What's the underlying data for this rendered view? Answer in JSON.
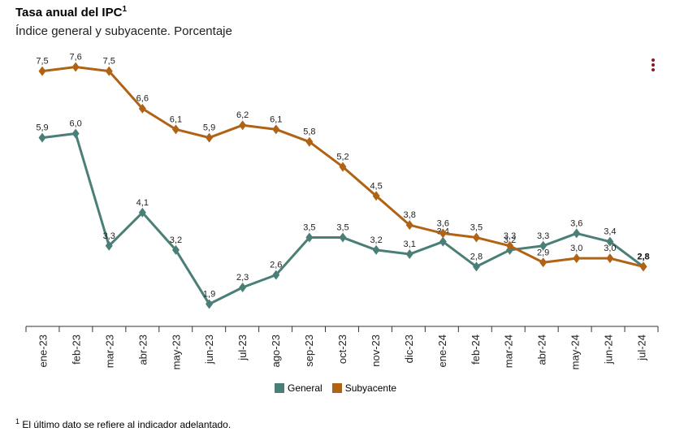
{
  "header": {
    "title": "Tasa anual del IPC",
    "title_sup": "1",
    "subtitle": "Índice general y subyacente. Porcentaje"
  },
  "menu_icon": "three-dots-vertical-icon",
  "footnote": {
    "sup": "1",
    "text": "El último dato se refiere al indicador adelantado."
  },
  "chart_data": {
    "type": "line",
    "categories": [
      "ene-23",
      "feb-23",
      "mar-23",
      "abr-23",
      "may-23",
      "jun-23",
      "jul-23",
      "ago-23",
      "sep-23",
      "oct-23",
      "nov-23",
      "dic-23",
      "ene-24",
      "feb-24",
      "mar-24",
      "abr-24",
      "may-24",
      "jun-24",
      "jul-24"
    ],
    "series": [
      {
        "name": "General",
        "color": "#4a7f78",
        "values": [
          5.9,
          6.0,
          3.3,
          4.1,
          3.2,
          1.9,
          2.3,
          2.6,
          3.5,
          3.5,
          3.2,
          3.1,
          3.4,
          2.8,
          3.2,
          3.3,
          3.6,
          3.4,
          2.8
        ],
        "labels": [
          "5,9",
          "6,0",
          "3,3",
          "4,1",
          "3,2",
          "1,9",
          "2,3",
          "2,6",
          "3,5",
          "3,5",
          "3,2",
          "3,1",
          "3,4",
          "2,8",
          "3,2",
          "3,3",
          "3,6",
          "3,4",
          "2,8"
        ]
      },
      {
        "name": "Subyacente",
        "color": "#b06314",
        "values": [
          7.5,
          7.6,
          7.5,
          6.6,
          6.1,
          5.9,
          6.2,
          6.1,
          5.8,
          5.2,
          4.5,
          3.8,
          3.6,
          3.5,
          3.3,
          2.9,
          3.0,
          3.0,
          2.8
        ],
        "labels": [
          "7,5",
          "7,6",
          "7,5",
          "6,6",
          "6,1",
          "5,9",
          "6,2",
          "6,1",
          "5,8",
          "5,2",
          "4,5",
          "3,8",
          "3,6",
          "3,5",
          "3,3",
          "2,9",
          "3,0",
          "3,0",
          "2,8"
        ]
      }
    ],
    "ylim": [
      1.5,
      8.0
    ],
    "grid": false,
    "legend_position": "bottom"
  }
}
